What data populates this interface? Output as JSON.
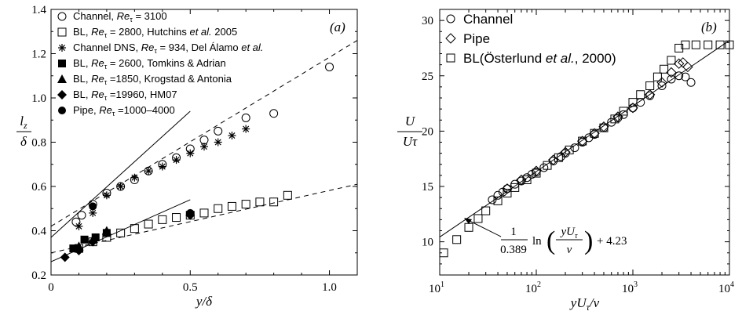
{
  "chart_data": [
    {
      "type": "scatter",
      "panel_label": "(a)",
      "xlim": [
        0,
        1.1
      ],
      "ylim": [
        0.2,
        1.4
      ],
      "xticks": [
        "0",
        "0.5",
        "1.0"
      ],
      "yticks": [
        "0.2",
        "0.4",
        "0.6",
        "0.8",
        "1.0",
        "1.2",
        "1.4"
      ],
      "xlabel": "y/δ",
      "ylabel_num": "l",
      "ylabel_sub": "z",
      "ylabel_den": "δ",
      "legend_position": "top-left",
      "series": [
        {
          "legend": "Channel, Re_τ = 3100",
          "marker": "open-circle",
          "x": [
            0.09,
            0.11,
            0.15,
            0.2,
            0.25,
            0.3,
            0.35,
            0.4,
            0.45,
            0.5,
            0.55,
            0.6,
            0.7,
            0.8,
            1.0
          ],
          "y": [
            0.44,
            0.47,
            0.52,
            0.57,
            0.6,
            0.63,
            0.67,
            0.7,
            0.73,
            0.77,
            0.81,
            0.85,
            0.91,
            0.93,
            1.14
          ]
        },
        {
          "legend": "BL, Re_τ = 2800, Hutchins et al. 2005",
          "marker": "open-square",
          "x": [
            0.1,
            0.15,
            0.2,
            0.25,
            0.3,
            0.35,
            0.4,
            0.45,
            0.5,
            0.55,
            0.6,
            0.65,
            0.7,
            0.75,
            0.8,
            0.85
          ],
          "y": [
            0.32,
            0.35,
            0.37,
            0.39,
            0.41,
            0.43,
            0.45,
            0.46,
            0.47,
            0.48,
            0.5,
            0.51,
            0.52,
            0.53,
            0.53,
            0.56
          ]
        },
        {
          "legend": "Channel DNS, Re_τ = 934, Del Álamo et al.",
          "marker": "star",
          "x": [
            0.1,
            0.15,
            0.2,
            0.25,
            0.3,
            0.35,
            0.4,
            0.45,
            0.5,
            0.55,
            0.6,
            0.65,
            0.7
          ],
          "y": [
            0.42,
            0.48,
            0.56,
            0.6,
            0.64,
            0.67,
            0.69,
            0.72,
            0.75,
            0.78,
            0.8,
            0.83,
            0.86
          ]
        },
        {
          "legend": "BL, Re_τ = 2600, Tomkins & Adrian",
          "marker": "filled-square",
          "x": [
            0.08,
            0.12,
            0.16,
            0.2
          ],
          "y": [
            0.32,
            0.36,
            0.37,
            0.39
          ]
        },
        {
          "legend": "BL, Re_τ =1850, Krogstad & Antonia",
          "marker": "filled-triangle",
          "x": [
            0.1,
            0.15,
            0.2
          ],
          "y": [
            0.33,
            0.36,
            0.4
          ]
        },
        {
          "legend": "BL, Re_τ =19960, HM07",
          "marker": "filled-diamond",
          "x": [
            0.05,
            0.1,
            0.15,
            0.5
          ],
          "y": [
            0.28,
            0.31,
            0.35,
            0.47
          ]
        },
        {
          "legend": "Pipe, Re_τ =1000–4000",
          "marker": "filled-circle",
          "x": [
            0.15,
            0.5
          ],
          "y": [
            0.51,
            0.48
          ]
        }
      ],
      "lines": [
        {
          "style": "solid",
          "x": [
            0,
            0.5
          ],
          "y": [
            0.37,
            0.94
          ]
        },
        {
          "style": "solid",
          "x": [
            0,
            0.5
          ],
          "y": [
            0.26,
            0.54
          ]
        },
        {
          "style": "dashed",
          "x": [
            0,
            1.1
          ],
          "y": [
            0.42,
            1.26
          ]
        },
        {
          "style": "dashed",
          "x": [
            0,
            1.1
          ],
          "y": [
            0.3,
            0.61
          ]
        }
      ]
    },
    {
      "type": "scatter",
      "panel_label": "(b)",
      "xscale": "log",
      "xlim": [
        10,
        10000
      ],
      "ylim": [
        7,
        31
      ],
      "xticks": [
        {
          "base": "10",
          "exp": "1"
        },
        {
          "base": "10",
          "exp": "2"
        },
        {
          "base": "10",
          "exp": "3"
        },
        {
          "base": "10",
          "exp": "4"
        }
      ],
      "yticks": [
        "10",
        "15",
        "20",
        "25",
        "30"
      ],
      "xlabel": "yU_τ/ν",
      "ylabel_num": "U",
      "ylabel_den": "Uτ",
      "legend_position": "top-left",
      "series": [
        {
          "legend": "Channel",
          "marker": "open-circle",
          "x": [
            35,
            40,
            45,
            50,
            60,
            70,
            80,
            90,
            100,
            120,
            150,
            180,
            200,
            250,
            300,
            350,
            400,
            500,
            600,
            700,
            800,
            1000,
            1200,
            1500,
            2000,
            2500,
            3000,
            3500,
            4000
          ],
          "y": [
            13.8,
            14.2,
            14.5,
            14.8,
            15.2,
            15.5,
            15.8,
            16.1,
            16.3,
            16.7,
            17.3,
            17.7,
            18.0,
            18.5,
            19.0,
            19.4,
            19.7,
            20.3,
            20.8,
            21.2,
            21.5,
            22.1,
            22.6,
            23.2,
            24.1,
            24.7,
            25.0,
            24.9,
            24.4
          ]
        },
        {
          "legend": "Pipe",
          "marker": "open-diamond",
          "x": [
            50,
            70,
            100,
            150,
            200,
            300,
            400,
            500,
            700,
            1000,
            1500,
            2000,
            2500,
            3000,
            3300,
            3700
          ],
          "y": [
            14.8,
            15.6,
            16.4,
            17.4,
            18.1,
            19.1,
            19.8,
            20.4,
            21.3,
            22.1,
            23.3,
            24.4,
            25.3,
            26.1,
            26.2,
            25.8
          ]
        },
        {
          "legend": "BL(Österlund et al., 2000)",
          "marker": "open-square",
          "x": [
            11,
            15,
            20,
            25,
            30,
            40,
            50,
            60,
            80,
            100,
            130,
            170,
            220,
            300,
            400,
            500,
            650,
            800,
            1000,
            1200,
            1500,
            1800,
            2100,
            2500,
            3000,
            3500,
            4500,
            6000,
            8000,
            10000
          ],
          "y": [
            9.0,
            10.2,
            11.3,
            12.1,
            12.8,
            13.7,
            14.4,
            14.9,
            15.6,
            16.2,
            16.9,
            17.6,
            18.3,
            19.1,
            19.8,
            20.3,
            21.1,
            21.8,
            22.6,
            23.3,
            24.1,
            24.9,
            25.6,
            26.4,
            27.5,
            27.8,
            27.8,
            27.8,
            27.8,
            27.8
          ]
        }
      ],
      "lines": [
        {
          "style": "solid",
          "x": [
            10,
            10000
          ],
          "y": [
            10.43,
            28.19
          ]
        }
      ],
      "annotation": {
        "lhs_num": "1",
        "lhs_den": "0.389",
        "ln": "ln",
        "num": "yU",
        "num_sub": "τ",
        "den": "ν",
        "rhs": "+ 4.23"
      }
    }
  ]
}
